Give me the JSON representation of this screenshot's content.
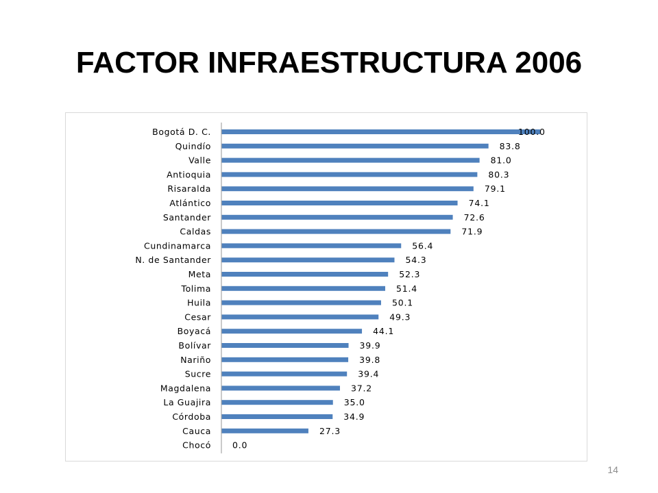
{
  "slide": {
    "title": "FACTOR INFRAESTRUCTURA 2006",
    "page_number": "14"
  },
  "colors": {
    "bar": "#4f81bd",
    "axis": "#a6a6a6",
    "frame": "#d9d9d9"
  },
  "chart_data": {
    "type": "bar",
    "orientation": "horizontal",
    "title": "",
    "xlabel": "",
    "ylabel": "",
    "xlim": [
      0,
      100
    ],
    "grid": false,
    "categories": [
      "Bogotá D. C.",
      "Quindío",
      "Valle",
      "Antioquia",
      "Risaralda",
      "Atlántico",
      "Santander",
      "Caldas",
      "Cundinamarca",
      "N. de Santander",
      "Meta",
      "Tolima",
      "Huila",
      "Cesar",
      "Boyacá",
      "Bolívar",
      "Nariño",
      "Sucre",
      "Magdalena",
      "La Guajira",
      "Córdoba",
      "Cauca",
      "Chocó"
    ],
    "values": [
      100.0,
      83.8,
      81.0,
      80.3,
      79.1,
      74.1,
      72.6,
      71.9,
      56.4,
      54.3,
      52.3,
      51.4,
      50.1,
      49.3,
      44.1,
      39.9,
      39.8,
      39.4,
      37.2,
      35.0,
      34.9,
      27.3,
      0.0
    ],
    "value_labels": [
      "100.0",
      "83.8",
      "81.0",
      "80.3",
      "79.1",
      "74.1",
      "72.6",
      "71.9",
      "56.4",
      "54.3",
      "52.3",
      "51.4",
      "50.1",
      "49.3",
      "44.1",
      "39.9",
      "39.8",
      "39.4",
      "37.2",
      "35.0",
      "34.9",
      "27.3",
      "0.0"
    ]
  }
}
